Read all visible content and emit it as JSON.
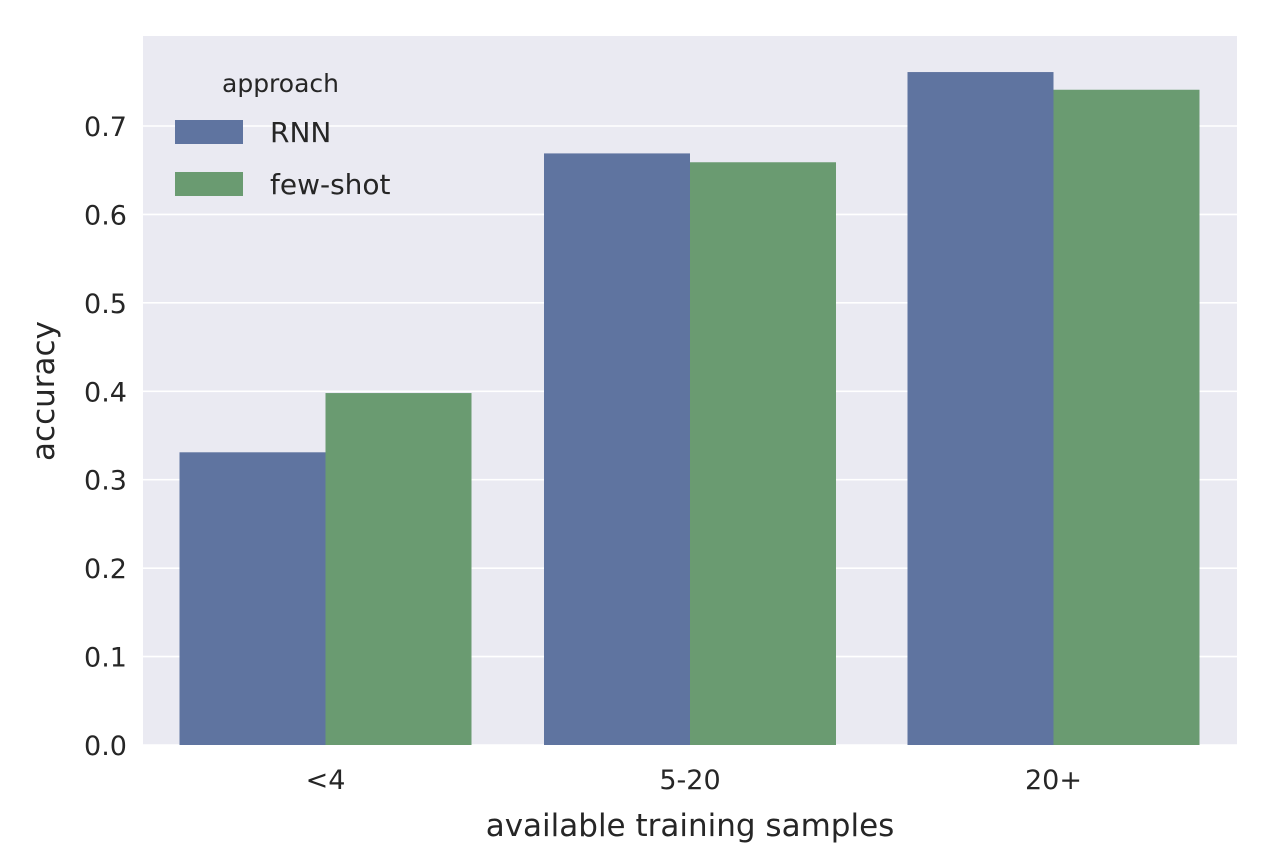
{
  "chart_data": {
    "type": "bar",
    "title": "",
    "xlabel": "available training samples",
    "ylabel": "accuracy",
    "categories": [
      "<4",
      "5-20",
      "20+"
    ],
    "series": [
      {
        "name": "RNN",
        "color": "#5f74a0",
        "values": [
          0.331,
          0.669,
          0.761
        ]
      },
      {
        "name": "few-shot",
        "color": "#6a9b71",
        "values": [
          0.398,
          0.659,
          0.741
        ]
      }
    ],
    "ylim": [
      0,
      0.8
    ],
    "yticks": [
      0.0,
      0.1,
      0.2,
      0.3,
      0.4,
      0.5,
      0.6,
      0.7
    ],
    "ytick_labels": [
      "0.0",
      "0.1",
      "0.2",
      "0.3",
      "0.4",
      "0.5",
      "0.6",
      "0.7"
    ],
    "legend": {
      "title": "approach",
      "location": "upper-left"
    },
    "grid": true,
    "plot_background": "#eaeaf2",
    "grid_color": "#ffffff"
  }
}
